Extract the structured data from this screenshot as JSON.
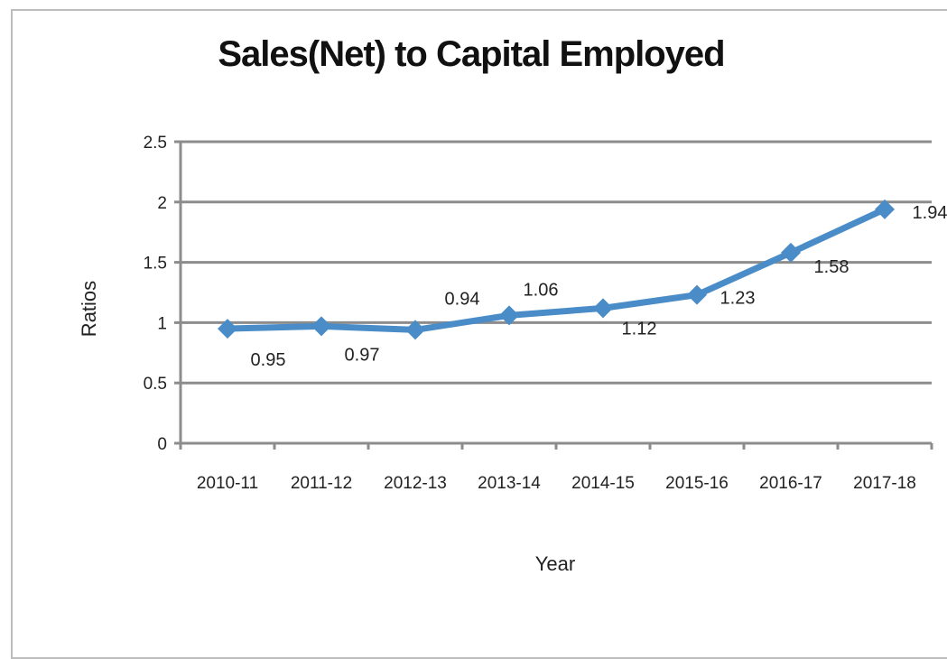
{
  "chart_data": {
    "type": "line",
    "title": "Sales(Net) to Capital Employed",
    "xlabel": "Year",
    "ylabel": "Ratios",
    "categories": [
      "2010-11",
      "2011-12",
      "2012-13",
      "2013-14",
      "2014-15",
      "2015-16",
      "2016-17",
      "2017-18"
    ],
    "series": [
      {
        "values": [
          0.95,
          0.97,
          0.94,
          1.06,
          1.12,
          1.23,
          1.58,
          1.94
        ],
        "labels": [
          "0.95",
          "0.97",
          "0.94",
          "1.06",
          "1.12",
          "1.23",
          "1.58",
          "1.94"
        ]
      }
    ],
    "ylim": [
      0,
      2.5
    ],
    "yticks": [
      "0",
      "0.5",
      "1",
      "1.5",
      "2",
      "2.5"
    ],
    "grid": true,
    "line_color": "#4a8cc8",
    "grid_color": "#8c8c8c",
    "axis_color": "#8c8c8c"
  }
}
